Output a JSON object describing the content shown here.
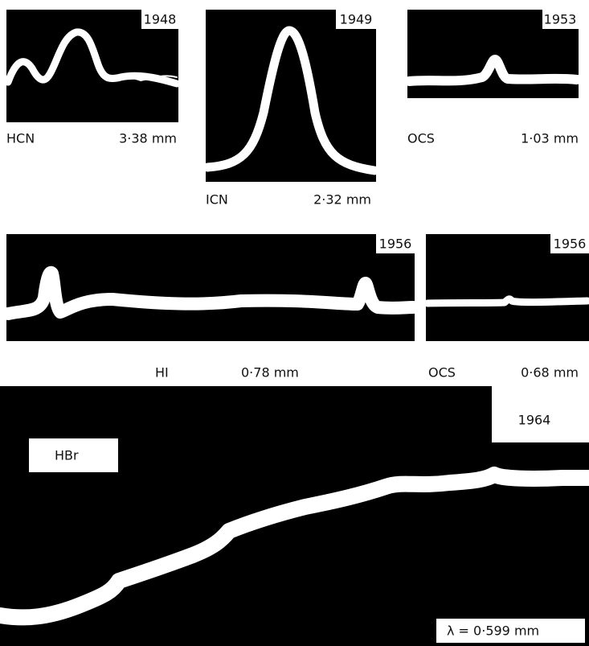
{
  "panels": [
    {
      "year": "1948",
      "molecule": "HCN",
      "wavelength": "3·38 mm"
    },
    {
      "year": "1949",
      "molecule": "ICN",
      "wavelength": "2·32 mm"
    },
    {
      "year": "1953",
      "molecule": "OCS",
      "wavelength": "1·03 mm"
    },
    {
      "year": "1956",
      "molecule": "HI",
      "wavelength": "0·78 mm"
    },
    {
      "year": "1956",
      "molecule": "OCS",
      "wavelength": "0·68 mm"
    },
    {
      "year": "1964",
      "molecule": "HBr",
      "wavelength": "λ  = 0·599 mm"
    }
  ]
}
